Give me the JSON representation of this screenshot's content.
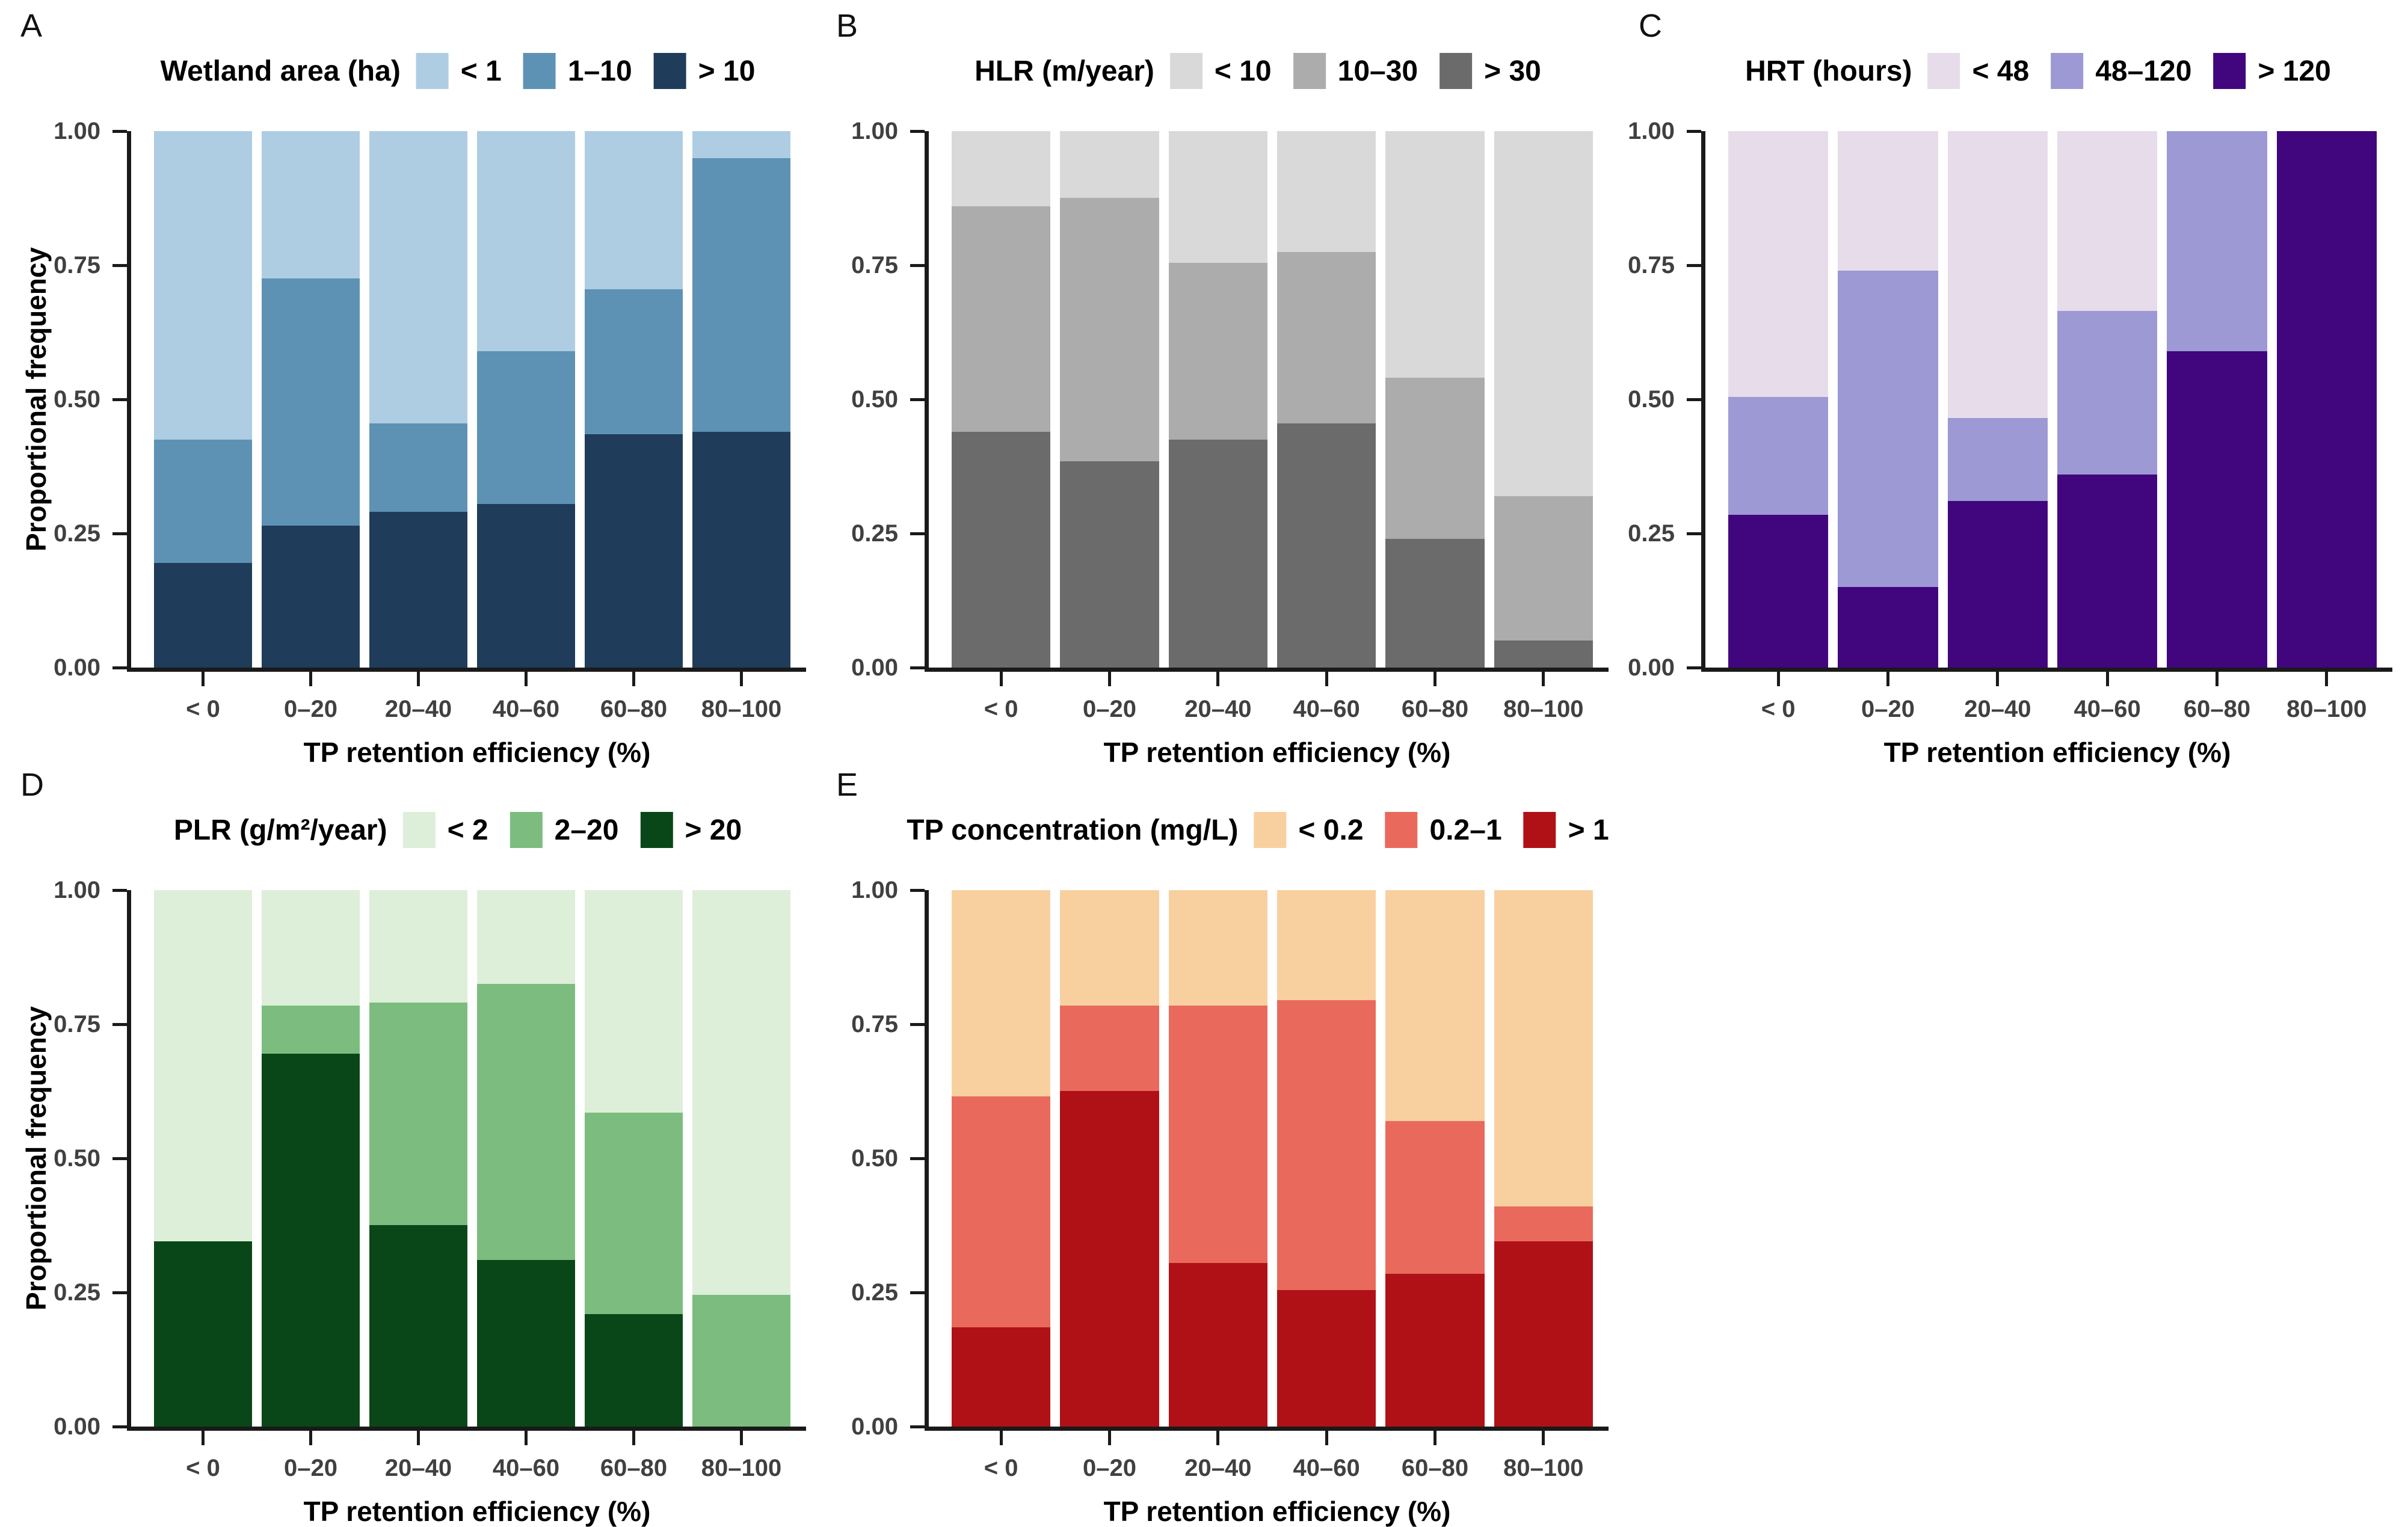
{
  "figure": {
    "y_axis_label": "Proportional frequency",
    "x_axis_label": "TP retention efficiency (%)",
    "y_ticks": [
      "1.00",
      "0.75",
      "0.50",
      "0.25",
      "0.00"
    ],
    "y_tick_values": [
      1.0,
      0.75,
      0.5,
      0.25,
      0.0
    ],
    "categories": [
      "< 0",
      "0–20",
      "20–40",
      "40–60",
      "60–80",
      "80–100"
    ],
    "background_color": "#ffffff",
    "axis_color": "#1a1a1a",
    "tick_text_color": "#404040"
  },
  "chart_data": [
    {
      "panel": "A",
      "type": "bar",
      "subtype": "stacked_proportional",
      "legend_title": "Wetland area (ha)",
      "xlabel": "TP retention efficiency (%)",
      "ylabel": "Proportional frequency",
      "ylim": [
        0,
        1
      ],
      "categories": [
        "< 0",
        "0–20",
        "20–40",
        "40–60",
        "60–80",
        "80–100"
      ],
      "series": [
        {
          "name": "< 1",
          "color": "#aecde2",
          "values": [
            0.575,
            0.275,
            0.545,
            0.41,
            0.295,
            0.05
          ]
        },
        {
          "name": "1–10",
          "color": "#5d92b4",
          "values": [
            0.23,
            0.46,
            0.165,
            0.285,
            0.27,
            0.51
          ]
        },
        {
          "name": "> 10",
          "color": "#1f3c5a",
          "values": [
            0.195,
            0.265,
            0.29,
            0.305,
            0.435,
            0.44
          ]
        }
      ],
      "stack_order_bottom_to_top": [
        "> 10",
        "1–10",
        "< 1"
      ]
    },
    {
      "panel": "B",
      "type": "bar",
      "subtype": "stacked_proportional",
      "legend_title": "HLR (m/year)",
      "xlabel": "TP retention efficiency (%)",
      "ylabel": "",
      "ylim": [
        0,
        1
      ],
      "categories": [
        "< 0",
        "0–20",
        "20–40",
        "40–60",
        "60–80",
        "80–100"
      ],
      "series": [
        {
          "name": "< 10",
          "color": "#d9d9d9",
          "values": [
            0.14,
            0.125,
            0.245,
            0.225,
            0.46,
            0.68
          ]
        },
        {
          "name": "10–30",
          "color": "#acacac",
          "values": [
            0.42,
            0.49,
            0.33,
            0.32,
            0.3,
            0.27
          ]
        },
        {
          "name": "> 30",
          "color": "#6b6b6b",
          "values": [
            0.44,
            0.385,
            0.425,
            0.455,
            0.24,
            0.05
          ]
        }
      ],
      "stack_order_bottom_to_top": [
        "> 30",
        "10–30",
        "< 10"
      ]
    },
    {
      "panel": "C",
      "type": "bar",
      "subtype": "stacked_proportional",
      "legend_title": "HRT (hours)",
      "xlabel": "TP retention efficiency (%)",
      "ylabel": "",
      "ylim": [
        0,
        1
      ],
      "categories": [
        "< 0",
        "0–20",
        "20–40",
        "40–60",
        "60–80",
        "80–100"
      ],
      "series": [
        {
          "name": "< 48",
          "color": "#e7dcea",
          "values": [
            0.495,
            0.26,
            0.535,
            0.335,
            0.0,
            0.0
          ]
        },
        {
          "name": "48–120",
          "color": "#9d99d4",
          "values": [
            0.22,
            0.59,
            0.155,
            0.305,
            0.41,
            0.0
          ]
        },
        {
          "name": "> 120",
          "color": "#41067e",
          "values": [
            0.285,
            0.15,
            0.31,
            0.36,
            0.59,
            1.0
          ]
        }
      ],
      "stack_order_bottom_to_top": [
        "> 120",
        "48–120",
        "< 48"
      ]
    },
    {
      "panel": "D",
      "type": "bar",
      "subtype": "stacked_proportional",
      "legend_title": "PLR (g/m²/year)",
      "xlabel": "TP retention efficiency (%)",
      "ylabel": "Proportional frequency",
      "ylim": [
        0,
        1
      ],
      "categories": [
        "< 0",
        "0–20",
        "20–40",
        "40–60",
        "60–80",
        "80–100"
      ],
      "series": [
        {
          "name": "< 2",
          "color": "#ddefd8",
          "values": [
            0.655,
            0.215,
            0.21,
            0.175,
            0.415,
            0.755
          ]
        },
        {
          "name": "2–20",
          "color": "#7cbd7f",
          "values": [
            0.0,
            0.09,
            0.415,
            0.515,
            0.375,
            0.245
          ]
        },
        {
          "name": "> 20",
          "color": "#0a4718",
          "values": [
            0.345,
            0.695,
            0.375,
            0.31,
            0.21,
            0.0
          ]
        }
      ],
      "stack_order_bottom_to_top": [
        "> 20",
        "2–20",
        "< 2"
      ]
    },
    {
      "panel": "E",
      "type": "bar",
      "subtype": "stacked_proportional",
      "legend_title": "TP concentration (mg/L)",
      "xlabel": "TP retention efficiency (%)",
      "ylabel": "",
      "ylim": [
        0,
        1
      ],
      "categories": [
        "< 0",
        "0–20",
        "20–40",
        "40–60",
        "60–80",
        "80–100"
      ],
      "series": [
        {
          "name": "< 0.2",
          "color": "#f8d0a0",
          "values": [
            0.385,
            0.215,
            0.215,
            0.205,
            0.43,
            0.59
          ]
        },
        {
          "name": "0.2–1",
          "color": "#e96a5c",
          "values": [
            0.43,
            0.16,
            0.48,
            0.54,
            0.285,
            0.065
          ]
        },
        {
          "name": "> 1",
          "color": "#b01116",
          "values": [
            0.185,
            0.625,
            0.305,
            0.255,
            0.285,
            0.345
          ]
        }
      ],
      "stack_order_bottom_to_top": [
        "> 1",
        "0.2–1",
        "< 0.2"
      ]
    }
  ]
}
